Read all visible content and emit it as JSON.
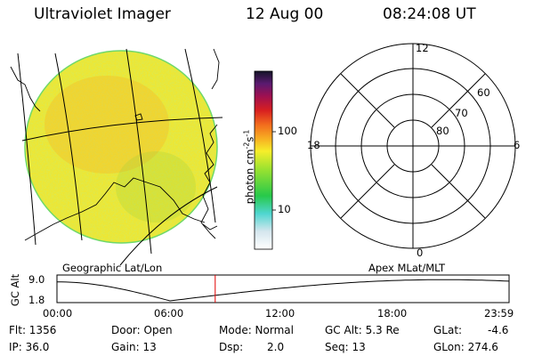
{
  "header": {
    "title": "Ultraviolet Imager",
    "date": "12 Aug 00",
    "time": "08:24:08 UT"
  },
  "colorbar": {
    "unit": "photon cm",
    "unit_exp1": "-2",
    "unit_s": "s",
    "unit_exp2": "-1",
    "ticks": [
      "100",
      "10"
    ]
  },
  "polar": {
    "mlt_labels": [
      "12",
      "18",
      "6",
      "0"
    ],
    "lat_labels": [
      "60",
      "70",
      "80"
    ]
  },
  "captions": {
    "left": "Geographic Lat/Lon",
    "right": "Apex MLat/MLT"
  },
  "altitude_plot": {
    "ylabel": "GC Alt",
    "yticks": [
      "9.0",
      "1.8"
    ],
    "xticks": [
      "00:00",
      "06:00",
      "12:00",
      "18:00",
      "23:59"
    ],
    "current_time_fraction": 0.35,
    "line_color": "#000000",
    "marker_color": "#e00000"
  },
  "status": {
    "flt": "Flt: 1356",
    "ip": "IP: 36.0",
    "door": "Door: Open",
    "gain": "Gain: 13",
    "mode": "Mode: Normal",
    "dsp_label": "Dsp:",
    "dsp_value": "2.0",
    "gcalt": "GC Alt: 5.3 Re",
    "seq": "Seq: 13",
    "glat_label": "GLat:",
    "glat_value": "-4.6",
    "glon": "GLon: 274.6"
  }
}
